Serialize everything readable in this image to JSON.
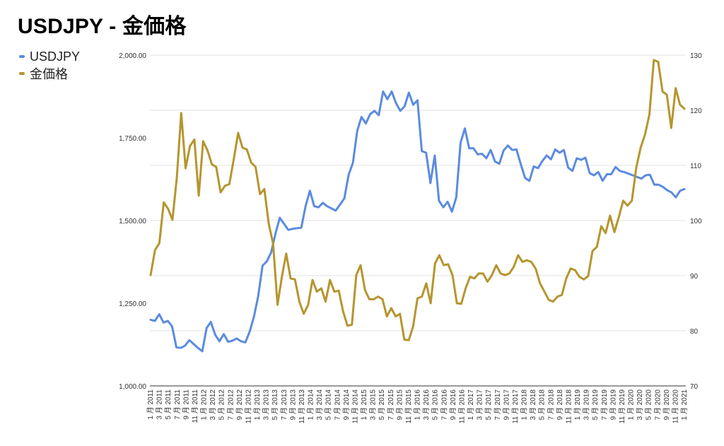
{
  "chart_data": {
    "type": "line",
    "title": "USDJPY - 金価格",
    "legend_position": "left",
    "grid": true,
    "x_labels": [
      "1 月 2011",
      "3 月 2011",
      "5 月 2011",
      "7 月 2011",
      "9 月 2011",
      "11 月 2011",
      "1 月 2012",
      "3 月 2012",
      "5 月 2012",
      "7 月 2012",
      "9 月 2012",
      "11 月 2012",
      "1 月 2013",
      "3 月 2013",
      "5 月 2013",
      "7 月 2013",
      "9 月 2013",
      "11 月 2013",
      "1 月 2014",
      "3 月 2014",
      "5 月 2014",
      "7 月 2014",
      "9 月 2014",
      "11 月 2014",
      "1 月 2015",
      "3 月 2015",
      "5 月 2015",
      "7 月 2015",
      "9 月 2015",
      "11 月 2015",
      "1 月 2016",
      "3 月 2016",
      "5 月 2016",
      "7 月 2016",
      "9 月 2016",
      "11 月 2016",
      "1 月 2017",
      "3 月 2017",
      "5 月 2017",
      "7 月 2017",
      "9 月 2017",
      "11 月 2017",
      "1 月 2018",
      "3 月 2018",
      "5 月 2018",
      "7 月 2018",
      "9 月 2018",
      "11 月 2018",
      "1 月 2019",
      "3 月 2019",
      "5 月 2019",
      "7 月 2019",
      "9 月 2019",
      "11 月 2019",
      "1 月 2020",
      "3 月 2020",
      "5 月 2020",
      "7 月 2020",
      "9 月 2020",
      "11 月 2020",
      "1 月 2021"
    ],
    "y_left": {
      "ticks": [
        "2,000.00",
        "1,750.00",
        "1,500.00",
        "1,250.00",
        "1,000.00"
      ],
      "min": 1000,
      "max": 2000
    },
    "y_right": {
      "ticks": [
        "130",
        "120",
        "110",
        "100",
        "90",
        "80",
        "70"
      ],
      "min": 70,
      "max": 130
    },
    "series": [
      {
        "name": "USDJPY",
        "axis": "right",
        "color": "#5b8bdf",
        "values": [
          82,
          81.8,
          83,
          81.5,
          81.8,
          80.8,
          77,
          76.9,
          77.3,
          78.3,
          77.6,
          76.9,
          76.3,
          80.5,
          81.6,
          79.3,
          78.1,
          79.4,
          78,
          78.2,
          78.6,
          78.1,
          77.9,
          79.8,
          82.5,
          86.3,
          91.8,
          92.6,
          94.2,
          97.6,
          100.5,
          99.4,
          98.3,
          98.5,
          98.6,
          98.7,
          102.6,
          105.4,
          102.6,
          102.4,
          103.2,
          102.6,
          102.2,
          101.8,
          102.9,
          104,
          108.3,
          110.5,
          116.3,
          118.8,
          117.6,
          119.3,
          119.9,
          119.1,
          123.4,
          122,
          123.4,
          121.3,
          119.9,
          120.7,
          123.2,
          121,
          121.8,
          112.6,
          112.3,
          106.8,
          111.8,
          103.6,
          102.4,
          103.4,
          101.6,
          104.2,
          114.1,
          116.7,
          113.1,
          113.1,
          112,
          112.1,
          111.3,
          112.8,
          110.7,
          110.3,
          112.7,
          113.6,
          112.8,
          112.9,
          110.2,
          107.7,
          107.2,
          109.8,
          109.5,
          110.8,
          111.8,
          111.1,
          112.9,
          112.3,
          112.8,
          109.6,
          109,
          111.3,
          111,
          111.4,
          108.6,
          108.2,
          108.8,
          107.2,
          108.4,
          108.4,
          109.7,
          109,
          108.8,
          108.5,
          108.2,
          107.9,
          107.6,
          108.2,
          108.3,
          106.5,
          106.5,
          106.1,
          105.5,
          105.1,
          104.2,
          105.4,
          105.7
        ]
      },
      {
        "name": "金価格",
        "axis": "left",
        "color": "#b5952f",
        "values": [
          1335,
          1410,
          1432,
          1555,
          1535,
          1502,
          1630,
          1825,
          1658,
          1725,
          1745,
          1575,
          1740,
          1712,
          1670,
          1662,
          1585,
          1605,
          1610,
          1685,
          1765,
          1720,
          1715,
          1675,
          1662,
          1580,
          1595,
          1490,
          1430,
          1245,
          1330,
          1400,
          1325,
          1322,
          1255,
          1218,
          1245,
          1320,
          1285,
          1295,
          1255,
          1320,
          1285,
          1288,
          1225,
          1182,
          1185,
          1335,
          1365,
          1290,
          1262,
          1262,
          1270,
          1262,
          1210,
          1235,
          1210,
          1218,
          1140,
          1138,
          1180,
          1265,
          1270,
          1310,
          1250,
          1370,
          1395,
          1365,
          1368,
          1335,
          1250,
          1248,
          1295,
          1330,
          1325,
          1340,
          1340,
          1315,
          1335,
          1365,
          1340,
          1335,
          1340,
          1360,
          1395,
          1375,
          1380,
          1375,
          1355,
          1310,
          1285,
          1260,
          1255,
          1270,
          1275,
          1325,
          1355,
          1350,
          1330,
          1322,
          1332,
          1408,
          1420,
          1483,
          1462,
          1515,
          1465,
          1510,
          1560,
          1545,
          1560,
          1660,
          1720,
          1760,
          1820,
          1985,
          1980,
          1890,
          1880,
          1780,
          1900,
          1850,
          1838
        ]
      }
    ]
  }
}
